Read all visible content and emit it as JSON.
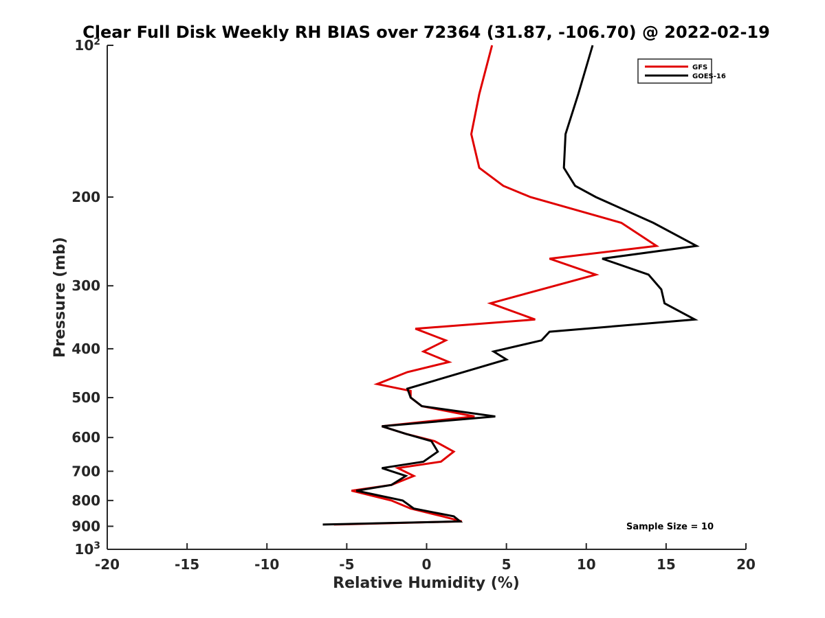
{
  "chart_data": {
    "type": "line",
    "title": "Clear Full Disk Weekly RH BIAS over 72364 (31.87, -106.70) @ 2022-02-19",
    "xlabel": "Relative Humidity (%)",
    "ylabel": "Pressure (mb)",
    "xlim": [
      -20,
      20
    ],
    "ylim": [
      100,
      1000
    ],
    "y_scale": "log",
    "y_reversed": true,
    "x_ticks": [
      "-20",
      "-15",
      "-10",
      "-5",
      "0",
      "5",
      "10",
      "15",
      "20"
    ],
    "x_tick_values": [
      -20,
      -15,
      -10,
      -5,
      0,
      5,
      10,
      15,
      20
    ],
    "y_ticks": [
      {
        "value": 100,
        "base": "10",
        "exp": "2"
      },
      {
        "value": 200,
        "label": "200"
      },
      {
        "value": 300,
        "label": "300"
      },
      {
        "value": 400,
        "label": "400"
      },
      {
        "value": 500,
        "label": "500"
      },
      {
        "value": 600,
        "label": "600"
      },
      {
        "value": 700,
        "label": "700"
      },
      {
        "value": 800,
        "label": "800"
      },
      {
        "value": 900,
        "label": "900"
      },
      {
        "value": 1000,
        "base": "10",
        "exp": "3"
      }
    ],
    "grid": false,
    "legend_position": "top-right",
    "annotation": "Sample Size = 10",
    "series": [
      {
        "name": "GFS",
        "color": "#e00000",
        "points": [
          [
            4.1,
            100
          ],
          [
            3.3,
            125
          ],
          [
            2.8,
            150
          ],
          [
            3.3,
            175
          ],
          [
            4.8,
            190
          ],
          [
            6.5,
            200
          ],
          [
            12.2,
            225
          ],
          [
            14.4,
            250
          ],
          [
            7.7,
            265
          ],
          [
            10.6,
            285
          ],
          [
            4.0,
            325
          ],
          [
            6.8,
            350
          ],
          [
            -0.7,
            365
          ],
          [
            1.2,
            385
          ],
          [
            -0.2,
            405
          ],
          [
            1.4,
            425
          ],
          [
            -1.2,
            445
          ],
          [
            -3.1,
            470
          ],
          [
            -1.0,
            485
          ],
          [
            -1.0,
            500
          ],
          [
            -0.3,
            520
          ],
          [
            3.0,
            545
          ],
          [
            -2.8,
            570
          ],
          [
            -1.3,
            590
          ],
          [
            0.5,
            610
          ],
          [
            1.7,
            640
          ],
          [
            0.9,
            670
          ],
          [
            -1.8,
            690
          ],
          [
            -0.8,
            715
          ],
          [
            -2.2,
            745
          ],
          [
            -4.7,
            765
          ],
          [
            -2.2,
            800
          ],
          [
            -1.0,
            830
          ],
          [
            1.0,
            860
          ],
          [
            2.2,
            880
          ],
          [
            -5.8,
            893
          ]
        ]
      },
      {
        "name": "GOES-16",
        "color": "#000000",
        "points": [
          [
            10.4,
            100
          ],
          [
            9.5,
            125
          ],
          [
            8.7,
            150
          ],
          [
            8.6,
            175
          ],
          [
            9.3,
            190
          ],
          [
            10.6,
            200
          ],
          [
            14.2,
            225
          ],
          [
            16.9,
            250
          ],
          [
            11.0,
            265
          ],
          [
            13.9,
            285
          ],
          [
            14.7,
            305
          ],
          [
            14.9,
            325
          ],
          [
            16.8,
            350
          ],
          [
            7.7,
            370
          ],
          [
            7.2,
            385
          ],
          [
            4.2,
            405
          ],
          [
            5.0,
            420
          ],
          [
            -1.2,
            480
          ],
          [
            -1.0,
            500
          ],
          [
            -0.3,
            520
          ],
          [
            4.3,
            545
          ],
          [
            -2.8,
            570
          ],
          [
            -1.3,
            590
          ],
          [
            0.3,
            610
          ],
          [
            0.7,
            640
          ],
          [
            -0.2,
            670
          ],
          [
            -2.8,
            690
          ],
          [
            -1.3,
            715
          ],
          [
            -2.2,
            745
          ],
          [
            -4.4,
            765
          ],
          [
            -1.5,
            800
          ],
          [
            -0.8,
            830
          ],
          [
            1.7,
            860
          ],
          [
            2.1,
            880
          ],
          [
            -6.5,
            893
          ]
        ]
      }
    ]
  }
}
